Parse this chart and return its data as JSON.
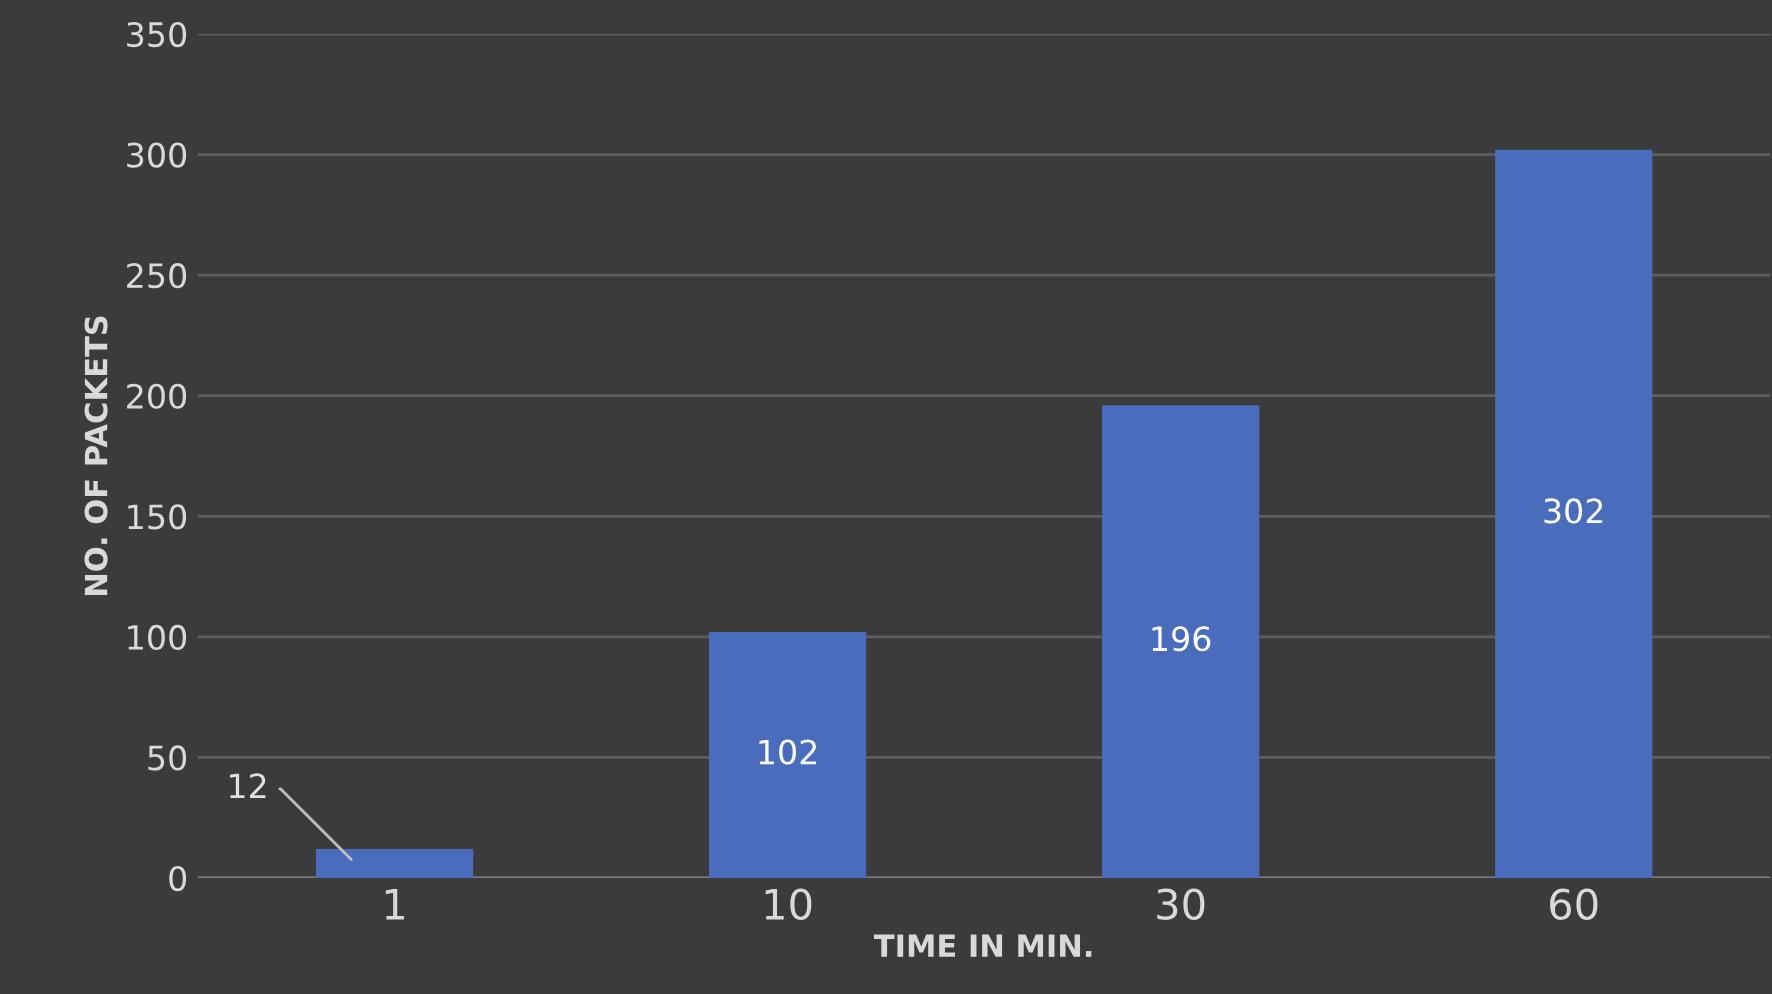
{
  "chart_data": {
    "type": "bar",
    "xlabel": "TIME IN MIN.",
    "ylabel": "NO. OF PACKETS",
    "categories": [
      "1",
      "10",
      "30",
      "60"
    ],
    "values": [
      12,
      102,
      196,
      302
    ],
    "color": "#4a6cbd",
    "ylim": [
      0,
      350
    ],
    "yticks": [
      0,
      50,
      100,
      150,
      200,
      250,
      300,
      350
    ],
    "grid": "y",
    "data_labels": true
  }
}
